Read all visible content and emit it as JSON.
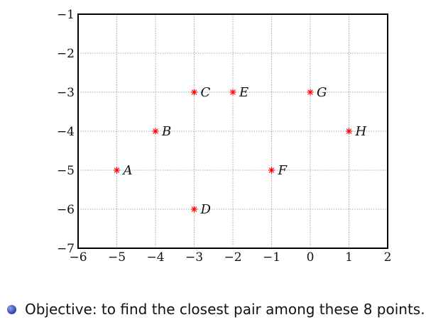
{
  "chart_data": {
    "type": "scatter",
    "title": "",
    "xlabel": "",
    "ylabel": "",
    "xlim": [
      -6,
      2
    ],
    "ylim": [
      -7,
      -1
    ],
    "grid": true,
    "x_ticks": [
      -6,
      -5,
      -4,
      -3,
      -2,
      -1,
      0,
      1,
      2
    ],
    "y_ticks": [
      -1,
      -2,
      -3,
      -4,
      -5,
      -6,
      -7
    ],
    "x_tick_labels": [
      "−6",
      "−5",
      "−4",
      "−3",
      "−2",
      "−1",
      "0",
      "1",
      "2"
    ],
    "y_tick_labels": [
      "−1",
      "−2",
      "−3",
      "−4",
      "−5",
      "−6",
      "−7"
    ],
    "marker_color": "#ff0000",
    "points": [
      {
        "label": "A",
        "x": -5,
        "y": -5
      },
      {
        "label": "B",
        "x": -4,
        "y": -4
      },
      {
        "label": "C",
        "x": -3,
        "y": -3
      },
      {
        "label": "D",
        "x": -3,
        "y": -6
      },
      {
        "label": "E",
        "x": -2,
        "y": -3
      },
      {
        "label": "F",
        "x": -1,
        "y": -5
      },
      {
        "label": "G",
        "x": 0,
        "y": -3
      },
      {
        "label": "H",
        "x": 1,
        "y": -4
      }
    ]
  },
  "objective_text": "Objective: to find the closest pair among these 8 points."
}
